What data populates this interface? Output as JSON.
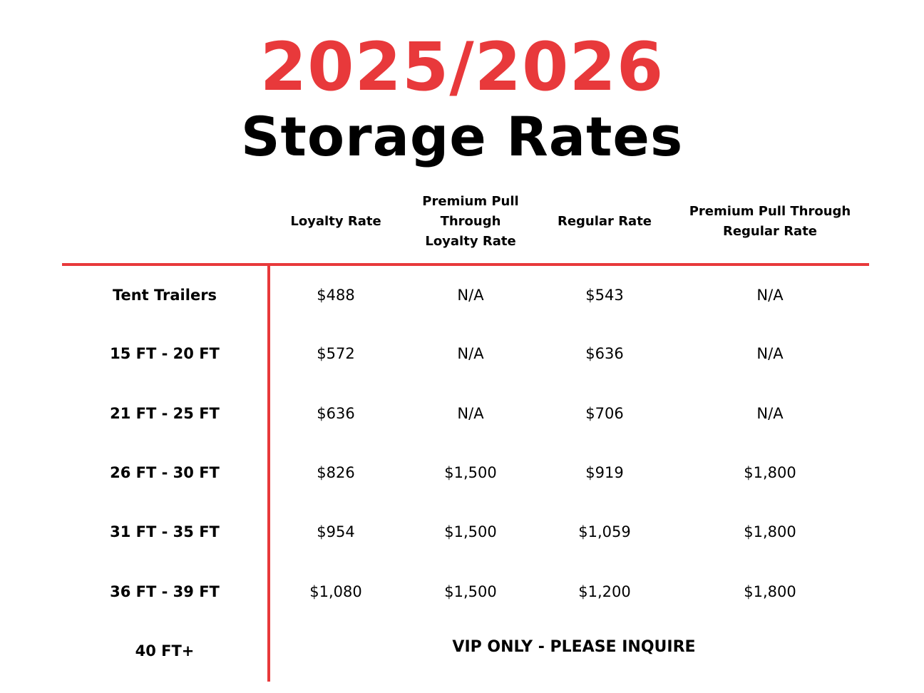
{
  "title": {
    "year": "2025/2026",
    "subtitle": "Storage Rates"
  },
  "headers": [
    "Loyalty Rate",
    "Premium Pull Through Loyalty Rate",
    "Regular Rate",
    "Premium Pull Through Regular Rate"
  ],
  "rows": [
    {
      "label": "Tent Trailers",
      "values": [
        "$488",
        "N/A",
        "$543",
        "N/A"
      ]
    },
    {
      "label": "15 FT - 20 FT",
      "values": [
        "$572",
        "N/A",
        "$636",
        "N/A"
      ]
    },
    {
      "label": "21 FT - 25 FT",
      "values": [
        "$636",
        "N/A",
        "$706",
        "N/A"
      ]
    },
    {
      "label": "26 FT - 30 FT",
      "values": [
        "$826",
        "$1,500",
        "$919",
        "$1,800"
      ]
    },
    {
      "label": "31 FT - 35 FT",
      "values": [
        "$954",
        "$1,500",
        "$1,059",
        "$1,800"
      ]
    },
    {
      "label": "36 FT - 39 FT",
      "values": [
        "$1,080",
        "$1,500",
        "$1,200",
        "$1,800"
      ]
    },
    {
      "label": "40 FT+"
    }
  ],
  "vip_note": "VIP ONLY - PLEASE INQUIRE",
  "colors": {
    "accent": "#e8393b",
    "text": "#000000",
    "background": "#ffffff"
  }
}
